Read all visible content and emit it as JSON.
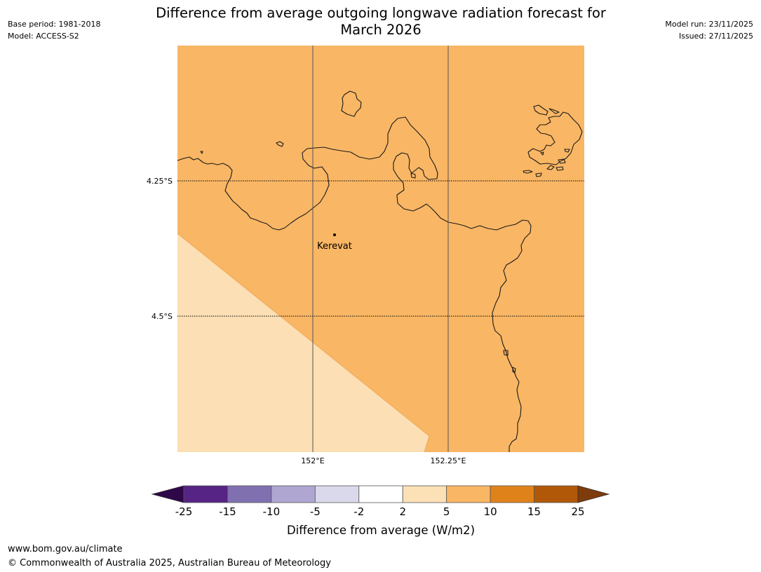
{
  "header": {
    "title_line1": "Difference from average outgoing longwave radiation forecast for",
    "title_line2": "March 2026",
    "base_period": "Base period: 1981-2018",
    "model": "Model: ACCESS-S2",
    "model_run": "Model run: 23/11/2025",
    "issued": "Issued: 27/11/2025"
  },
  "map": {
    "lat_labels": [
      "4.25°S",
      "4.5°S"
    ],
    "lon_labels": [
      "152°E",
      "152.25°E"
    ],
    "place": {
      "name": "Kerevat"
    },
    "fill_colors": {
      "main": "#f9b664",
      "light": "#fcdfb4",
      "coast": "#1a1a1a"
    }
  },
  "colorbar": {
    "title": "Difference from average (W/m2)",
    "tick_labels": [
      "-25",
      "-15",
      "-10",
      "-5",
      "-2",
      "2",
      "5",
      "10",
      "15",
      "25"
    ],
    "colors": [
      "#562484",
      "#8170b0",
      "#afa6d1",
      "#d9d9eb",
      "#ffffff",
      "#fce0b6",
      "#f9b664",
      "#e0821a",
      "#b15808"
    ],
    "under_color": "#2e0848",
    "over_color": "#7e3b0c"
  },
  "footer": {
    "url": "www.bom.gov.au/climate",
    "copyright": "© Commonwealth of Australia 2025, Australian Bureau of Meteorology"
  }
}
